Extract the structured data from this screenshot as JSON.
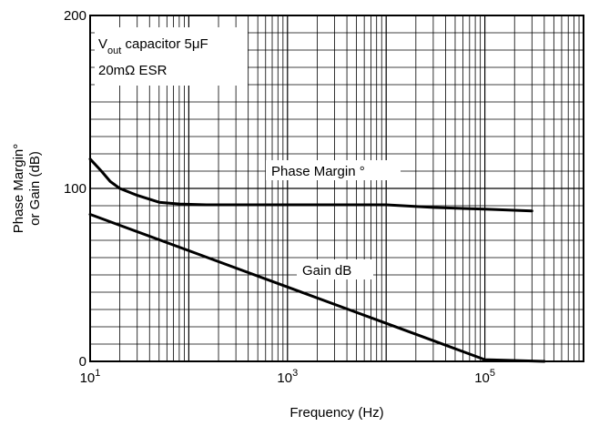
{
  "chart_data": {
    "type": "line",
    "xlabel": "Frequency (Hz)",
    "ylabel_line1": "Phase Margin°",
    "ylabel_line2": "or Gain (dB)",
    "x_scale": "log",
    "xlim": [
      10,
      1000000
    ],
    "ylim": [
      0,
      200
    ],
    "grid": true,
    "x_ticks": [
      {
        "value": 10,
        "base": "10",
        "exp": "1"
      },
      {
        "value": 1000,
        "base": "10",
        "exp": "3"
      },
      {
        "value": 100000,
        "base": "10",
        "exp": "5"
      }
    ],
    "y_ticks": [
      {
        "value": 0,
        "label": "0"
      },
      {
        "value": 100,
        "label": "100"
      },
      {
        "value": 200,
        "label": "200"
      }
    ],
    "conditions": {
      "line1_prefix": "V",
      "line1_sub": "out",
      "line1_suffix": " capacitor 5μF",
      "line2": "20mΩ ESR"
    },
    "series": [
      {
        "name": "Phase Margin °",
        "x": [
          10,
          13,
          16,
          20,
          30,
          50,
          80,
          150,
          300,
          1000,
          3000,
          10000,
          30000,
          100000,
          300000
        ],
        "y": [
          117,
          110,
          104,
          100,
          96,
          92,
          91,
          90.5,
          90.5,
          90.5,
          90.5,
          90.5,
          89,
          88,
          87
        ]
      },
      {
        "name": "Gain dB",
        "x": [
          10,
          100,
          1000,
          10000,
          100000,
          400000
        ],
        "y": [
          85,
          64,
          43,
          22,
          1,
          0
        ]
      }
    ]
  }
}
